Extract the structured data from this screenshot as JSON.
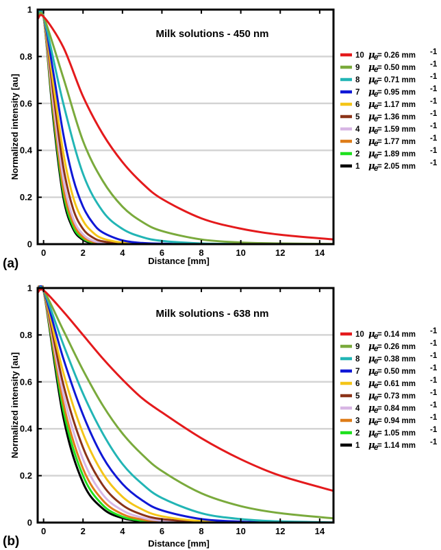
{
  "chart_data": [
    {
      "type": "line",
      "panel_label": "(a)",
      "title": "Milk solutions - 450 nm",
      "xlabel": "Distance [mm]",
      "ylabel": "Normalized intensity [au]",
      "xlim": [
        -0.3,
        14.7
      ],
      "ylim": [
        0,
        1
      ],
      "x_ticks": [
        "0",
        "2",
        "4",
        "6",
        "8",
        "10",
        "12",
        "14"
      ],
      "y_ticks": [
        "0",
        "0.2",
        "0.4",
        "0.6",
        "0.8",
        "1"
      ],
      "grid": "horizontal",
      "legend_position": "right",
      "series": [
        {
          "label_num": "10",
          "mu_symbol": "μ",
          "mu_sub": "e",
          "mu_text": " = 0.26 mm",
          "mu_sup": "-1",
          "color": "#e41a1c",
          "x": [
            -0.3,
            0,
            1,
            2,
            3,
            4,
            5,
            6,
            8,
            10,
            12,
            14.7
          ],
          "values": [
            0.96,
            0.97,
            0.84,
            0.63,
            0.47,
            0.35,
            0.26,
            0.193,
            0.11,
            0.066,
            0.04,
            0.02
          ]
        },
        {
          "label_num": "9",
          "mu_symbol": "μ",
          "mu_sub": "e",
          "mu_text": " = 0.50 mm",
          "mu_sup": "-1",
          "color": "#7aaa3c",
          "x": [
            -0.3,
            0,
            1,
            2,
            3,
            4,
            5,
            6,
            8,
            10,
            12,
            14.7
          ],
          "values": [
            0.96,
            0.97,
            0.71,
            0.44,
            0.27,
            0.16,
            0.095,
            0.056,
            0.02,
            0.007,
            0.003,
            0.001
          ]
        },
        {
          "label_num": "8",
          "mu_symbol": "μ",
          "mu_sub": "e",
          "mu_text": " = 0.71 mm",
          "mu_sup": "-1",
          "color": "#22b5b5",
          "x": [
            -0.3,
            0,
            1,
            2,
            3,
            4,
            5,
            6,
            8,
            10,
            12,
            14.7
          ],
          "values": [
            0.96,
            0.97,
            0.6,
            0.3,
            0.14,
            0.065,
            0.03,
            0.014,
            0.003,
            0.001,
            0,
            0
          ]
        },
        {
          "label_num": "7",
          "mu_symbol": "μ",
          "mu_sub": "e",
          "mu_text": " = 0.95 mm",
          "mu_sup": "-1",
          "color": "#0f18d6",
          "x": [
            -0.3,
            0,
            0.5,
            1,
            1.5,
            2,
            2.5,
            3,
            4,
            5,
            6,
            8,
            14.7
          ],
          "values": [
            0.96,
            0.97,
            0.73,
            0.47,
            0.28,
            0.16,
            0.09,
            0.05,
            0.016,
            0.005,
            0.002,
            0,
            0
          ]
        },
        {
          "label_num": "6",
          "mu_symbol": "μ",
          "mu_sub": "e",
          "mu_text": " = 1.17 mm",
          "mu_sup": "-1",
          "color": "#f4c518",
          "x": [
            -0.3,
            0,
            0.5,
            1,
            1.5,
            2,
            2.5,
            3,
            4,
            5,
            6,
            8,
            14.7
          ],
          "values": [
            0.96,
            0.97,
            0.68,
            0.39,
            0.2,
            0.1,
            0.05,
            0.024,
            0.006,
            0.001,
            0,
            0,
            0
          ]
        },
        {
          "label_num": "5",
          "mu_symbol": "μ",
          "mu_sub": "e",
          "mu_text": " = 1.36 mm",
          "mu_sup": "-1",
          "color": "#8b3318",
          "x": [
            -0.3,
            0,
            0.5,
            1,
            1.5,
            2,
            2.5,
            3,
            4,
            5,
            6,
            8,
            14.7
          ],
          "values": [
            0.96,
            0.97,
            0.64,
            0.33,
            0.15,
            0.065,
            0.028,
            0.012,
            0.002,
            0,
            0,
            0,
            0
          ]
        },
        {
          "label_num": "4",
          "mu_symbol": "μ",
          "mu_sub": "e",
          "mu_text": " = 1.59 mm",
          "mu_sup": "-1",
          "color": "#d7b6e4",
          "x": [
            -0.3,
            0,
            0.5,
            1,
            1.5,
            2,
            2.5,
            3,
            4,
            5,
            6,
            8,
            14.7
          ],
          "values": [
            0.96,
            0.97,
            0.6,
            0.28,
            0.11,
            0.042,
            0.015,
            0.006,
            0.001,
            0,
            0,
            0,
            0
          ]
        },
        {
          "label_num": "3",
          "mu_symbol": "μ",
          "mu_sub": "e",
          "mu_text": " = 1.77 mm",
          "mu_sup": "-1",
          "color": "#de7c18",
          "x": [
            -0.3,
            0,
            0.5,
            1,
            1.5,
            2,
            2.5,
            3,
            4,
            5,
            6,
            8,
            14.7
          ],
          "values": [
            0.96,
            0.97,
            0.57,
            0.24,
            0.09,
            0.03,
            0.01,
            0.003,
            0,
            0,
            0,
            0,
            0
          ]
        },
        {
          "label_num": "2",
          "mu_symbol": "μ",
          "mu_sub": "e",
          "mu_text": " = 1.89 mm",
          "mu_sup": "-1",
          "color": "#1ee01e",
          "x": [
            -0.3,
            0,
            0.5,
            1,
            1.5,
            2,
            2.5,
            3,
            4,
            5,
            6,
            8,
            14.7
          ],
          "values": [
            0.96,
            0.97,
            0.55,
            0.22,
            0.075,
            0.024,
            0.007,
            0.002,
            0,
            0,
            0,
            0,
            0
          ]
        },
        {
          "label_num": "1",
          "mu_symbol": "μ",
          "mu_sub": "e",
          "mu_text": " = 2.05 mm",
          "mu_sup": "-1",
          "color": "#000000",
          "x": [
            -0.3,
            0,
            0.5,
            1,
            1.5,
            2,
            2.5,
            3,
            4,
            5,
            6,
            8,
            14.7
          ],
          "values": [
            0.96,
            0.97,
            0.53,
            0.2,
            0.065,
            0.018,
            0.005,
            0.001,
            0,
            0,
            0,
            0,
            0
          ]
        }
      ]
    },
    {
      "type": "line",
      "panel_label": "(b)",
      "title": "Milk solutions - 638 nm",
      "xlabel": "Distance [mm]",
      "ylabel": "Normalized intensity [au]",
      "xlim": [
        -0.3,
        14.7
      ],
      "ylim": [
        0,
        1
      ],
      "x_ticks": [
        "0",
        "2",
        "4",
        "6",
        "8",
        "10",
        "12",
        "14"
      ],
      "y_ticks": [
        "0",
        "0.2",
        "0.4",
        "0.6",
        "0.8",
        "1"
      ],
      "grid": "horizontal",
      "legend_position": "right",
      "series": [
        {
          "label_num": "10",
          "mu_symbol": "μ",
          "mu_sub": "e",
          "mu_text": " = 0.14 mm",
          "mu_sup": "-1",
          "color": "#e41a1c",
          "x": [
            -0.3,
            0,
            1,
            2,
            3,
            4,
            5,
            6,
            8,
            10,
            12,
            14.7
          ],
          "values": [
            0.98,
            0.99,
            0.9,
            0.8,
            0.7,
            0.61,
            0.53,
            0.47,
            0.36,
            0.27,
            0.2,
            0.135
          ]
        },
        {
          "label_num": "9",
          "mu_symbol": "μ",
          "mu_sub": "e",
          "mu_text": " = 0.26 mm",
          "mu_sup": "-1",
          "color": "#7aaa3c",
          "x": [
            -0.3,
            0,
            1,
            2,
            3,
            4,
            5,
            6,
            8,
            10,
            12,
            14.7
          ],
          "values": [
            0.98,
            0.99,
            0.82,
            0.65,
            0.5,
            0.38,
            0.29,
            0.22,
            0.125,
            0.07,
            0.04,
            0.018
          ]
        },
        {
          "label_num": "8",
          "mu_symbol": "μ",
          "mu_sub": "e",
          "mu_text": " = 0.38 mm",
          "mu_sup": "-1",
          "color": "#22b5b5",
          "x": [
            -0.3,
            0,
            1,
            2,
            3,
            4,
            5,
            6,
            8,
            10,
            12,
            14.7
          ],
          "values": [
            0.98,
            0.99,
            0.76,
            0.55,
            0.38,
            0.25,
            0.165,
            0.105,
            0.04,
            0.015,
            0.005,
            0.001
          ]
        },
        {
          "label_num": "7",
          "mu_symbol": "μ",
          "mu_sub": "e",
          "mu_text": " = 0.50 mm",
          "mu_sup": "-1",
          "color": "#0f18d6",
          "x": [
            -0.3,
            0,
            1,
            2,
            3,
            4,
            5,
            6,
            8,
            10,
            12,
            14.7
          ],
          "values": [
            0.98,
            0.99,
            0.7,
            0.46,
            0.28,
            0.165,
            0.095,
            0.052,
            0.015,
            0.004,
            0.001,
            0
          ]
        },
        {
          "label_num": "6",
          "mu_symbol": "μ",
          "mu_sub": "e",
          "mu_text": " = 0.61 mm",
          "mu_sup": "-1",
          "color": "#f4c518",
          "x": [
            -0.3,
            0,
            1,
            2,
            3,
            4,
            5,
            6,
            8,
            10,
            12,
            14.7
          ],
          "values": [
            0.98,
            0.99,
            0.64,
            0.38,
            0.21,
            0.11,
            0.056,
            0.027,
            0.006,
            0.001,
            0,
            0
          ]
        },
        {
          "label_num": "5",
          "mu_symbol": "μ",
          "mu_sub": "e",
          "mu_text": " = 0.73 mm",
          "mu_sup": "-1",
          "color": "#8b3318",
          "x": [
            -0.3,
            0,
            1,
            2,
            3,
            4,
            5,
            6,
            8,
            10,
            12,
            14.7
          ],
          "values": [
            0.98,
            0.99,
            0.59,
            0.32,
            0.16,
            0.075,
            0.034,
            0.015,
            0.003,
            0,
            0,
            0
          ]
        },
        {
          "label_num": "4",
          "mu_symbol": "μ",
          "mu_sub": "e",
          "mu_text": " = 0.84 mm",
          "mu_sup": "-1",
          "color": "#d7b6e4",
          "x": [
            -0.3,
            0,
            1,
            2,
            3,
            4,
            5,
            6,
            8,
            10,
            12,
            14.7
          ],
          "values": [
            0.98,
            0.99,
            0.55,
            0.27,
            0.12,
            0.052,
            0.021,
            0.008,
            0.001,
            0,
            0,
            0
          ]
        },
        {
          "label_num": "3",
          "mu_symbol": "μ",
          "mu_sub": "e",
          "mu_text": " = 0.94 mm",
          "mu_sup": "-1",
          "color": "#de7c18",
          "x": [
            -0.3,
            0,
            1,
            2,
            3,
            4,
            5,
            6,
            8,
            10,
            12,
            14.7
          ],
          "values": [
            0.98,
            0.99,
            0.51,
            0.23,
            0.095,
            0.036,
            0.013,
            0.004,
            0,
            0,
            0,
            0
          ]
        },
        {
          "label_num": "2",
          "mu_symbol": "μ",
          "mu_sub": "e",
          "mu_text": " = 1.05 mm",
          "mu_sup": "-1",
          "color": "#1ee01e",
          "x": [
            -0.3,
            0,
            1,
            2,
            3,
            4,
            5,
            6,
            8,
            10,
            12,
            14.7
          ],
          "values": [
            0.98,
            0.99,
            0.48,
            0.2,
            0.075,
            0.025,
            0.008,
            0.002,
            0,
            0,
            0,
            0
          ]
        },
        {
          "label_num": "1",
          "mu_symbol": "μ",
          "mu_sub": "e",
          "mu_text": " = 1.14 mm",
          "mu_sup": "-1",
          "color": "#000000",
          "x": [
            -0.3,
            0,
            1,
            2,
            3,
            4,
            5,
            6,
            8,
            10,
            12,
            14.7
          ],
          "values": [
            0.98,
            0.99,
            0.45,
            0.17,
            0.06,
            0.019,
            0.005,
            0.001,
            0,
            0,
            0,
            0
          ]
        }
      ]
    }
  ]
}
